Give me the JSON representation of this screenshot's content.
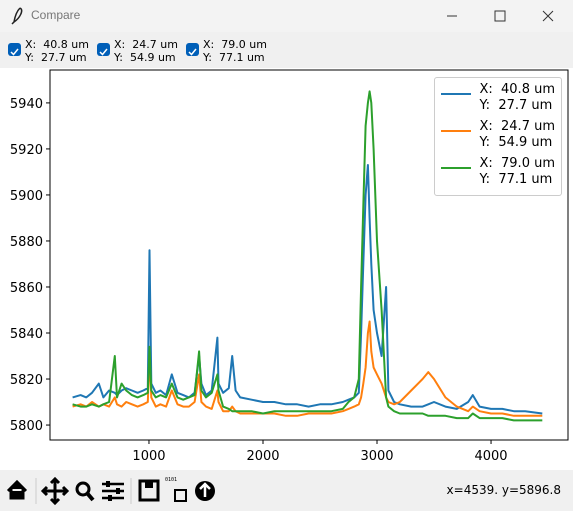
{
  "window": {
    "title": "Compare"
  },
  "checkboxes": [
    {
      "label": "X:  40.8 um\nY:  27.7 um",
      "checked": true
    },
    {
      "label": "X:  24.7 um\nY:  54.9 um",
      "checked": true
    },
    {
      "label": "X:  79.0 um\nY:  77.1 um",
      "checked": true
    }
  ],
  "chart_data": {
    "type": "line",
    "x": [
      330,
      400,
      450,
      500,
      560,
      600,
      650,
      700,
      720,
      760,
      800,
      850,
      900,
      950,
      990,
      1005,
      1020,
      1060,
      1100,
      1150,
      1200,
      1250,
      1300,
      1350,
      1400,
      1440,
      1460,
      1500,
      1550,
      1600,
      1610,
      1650,
      1700,
      1730,
      1760,
      1800,
      1900,
      2000,
      2100,
      2200,
      2300,
      2400,
      2500,
      2600,
      2700,
      2750,
      2800,
      2840,
      2860,
      2880,
      2900,
      2920,
      2935,
      2950,
      2970,
      3000,
      3040,
      3080,
      3100,
      3150,
      3200,
      3300,
      3400,
      3450,
      3500,
      3600,
      3700,
      3800,
      3840,
      3900,
      4000,
      4100,
      4200,
      4300,
      4450
    ],
    "series": [
      {
        "name": "X:  40.8 um\nY:  27.7 um",
        "color": "#1f77b4",
        "values": [
          5812,
          5813,
          5812,
          5814,
          5818,
          5812,
          5815,
          5814,
          5813,
          5815,
          5816,
          5815,
          5814,
          5815,
          5816,
          5876,
          5818,
          5814,
          5815,
          5813,
          5822,
          5814,
          5813,
          5812,
          5814,
          5830,
          5818,
          5813,
          5815,
          5838,
          5818,
          5814,
          5816,
          5830,
          5815,
          5812,
          5811,
          5810,
          5810,
          5809,
          5809,
          5808,
          5809,
          5809,
          5810,
          5811,
          5812,
          5814,
          5840,
          5870,
          5900,
          5913,
          5890,
          5870,
          5850,
          5840,
          5830,
          5860,
          5815,
          5810,
          5809,
          5808,
          5808,
          5809,
          5810,
          5808,
          5807,
          5810,
          5813,
          5808,
          5807,
          5807,
          5806,
          5806,
          5805
        ]
      },
      {
        "name": "X:  24.7 um\nY:  54.9 um",
        "color": "#ff7f0e",
        "values": [
          5808,
          5809,
          5808,
          5810,
          5808,
          5809,
          5808,
          5812,
          5809,
          5808,
          5810,
          5809,
          5808,
          5809,
          5810,
          5830,
          5812,
          5808,
          5809,
          5808,
          5815,
          5809,
          5808,
          5808,
          5810,
          5822,
          5810,
          5808,
          5807,
          5815,
          5810,
          5806,
          5806,
          5808,
          5806,
          5805,
          5805,
          5805,
          5805,
          5804,
          5804,
          5805,
          5805,
          5805,
          5806,
          5807,
          5808,
          5809,
          5812,
          5818,
          5825,
          5840,
          5845,
          5832,
          5825,
          5822,
          5818,
          5812,
          5810,
          5809,
          5810,
          5815,
          5820,
          5823,
          5820,
          5812,
          5808,
          5806,
          5808,
          5806,
          5805,
          5805,
          5804,
          5804,
          5804
        ]
      },
      {
        "name": "X:  79.0 um\nY:  77.1 um",
        "color": "#2ca02c",
        "values": [
          5809,
          5808,
          5808,
          5809,
          5808,
          5809,
          5810,
          5830,
          5812,
          5818,
          5815,
          5813,
          5812,
          5813,
          5814,
          5834,
          5815,
          5812,
          5813,
          5812,
          5818,
          5812,
          5811,
          5812,
          5813,
          5832,
          5815,
          5812,
          5814,
          5822,
          5815,
          5808,
          5807,
          5806,
          5806,
          5806,
          5806,
          5805,
          5806,
          5806,
          5806,
          5806,
          5806,
          5806,
          5807,
          5810,
          5812,
          5820,
          5860,
          5895,
          5930,
          5940,
          5945,
          5940,
          5920,
          5880,
          5850,
          5812,
          5808,
          5806,
          5805,
          5805,
          5805,
          5804,
          5804,
          5804,
          5803,
          5803,
          5805,
          5803,
          5803,
          5803,
          5802,
          5802,
          5802
        ]
      }
    ],
    "xlim": [
      132,
      4675
    ],
    "xticks": [
      1000,
      2000,
      3000,
      4000
    ],
    "ylim": [
      5793.5,
      5954.3
    ],
    "yticks": [
      5800,
      5820,
      5840,
      5860,
      5880,
      5900,
      5920,
      5940
    ],
    "legend": "upper right"
  },
  "status": "x=4539. y=5896.8"
}
